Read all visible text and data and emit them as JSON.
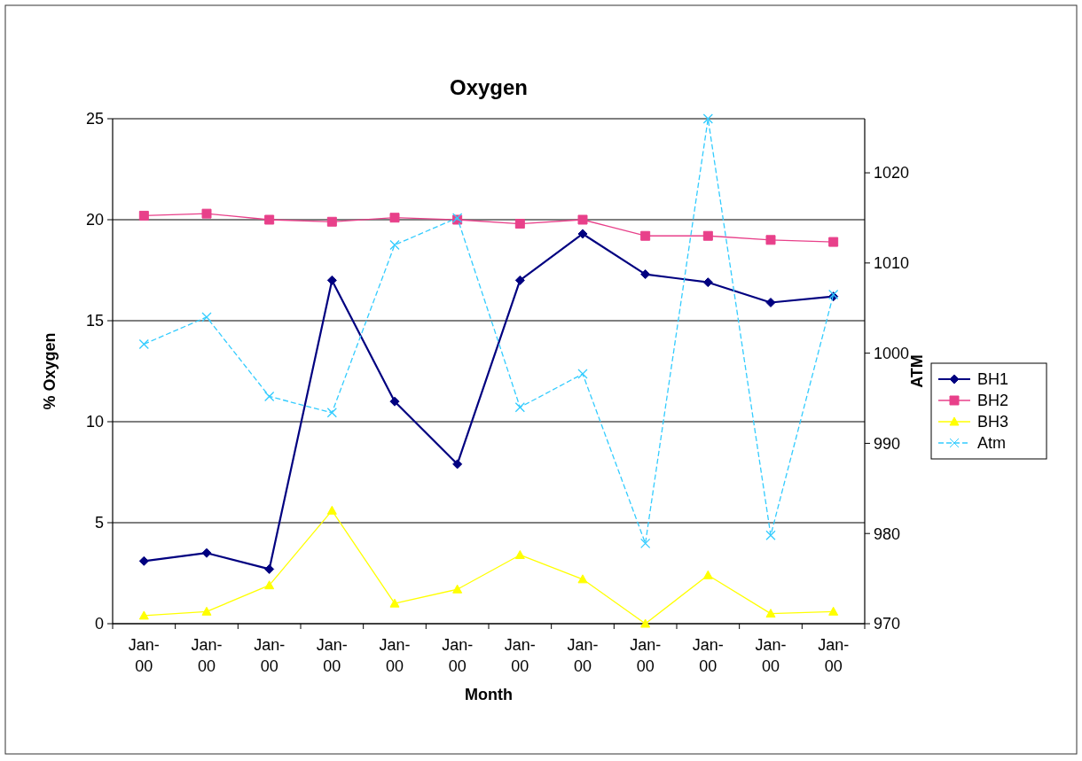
{
  "chart_data": {
    "type": "line",
    "title": "Oxygen",
    "xlabel": "Month",
    "ylabel": "% Oxygen",
    "y2label": "ATM",
    "categories": [
      "Jan-00",
      "Jan-00",
      "Jan-00",
      "Jan-00",
      "Jan-00",
      "Jan-00",
      "Jan-00",
      "Jan-00",
      "Jan-00",
      "Jan-00",
      "Jan-00",
      "Jan-00"
    ],
    "series": [
      {
        "name": "BH1",
        "color": "#000080",
        "marker": "diamond",
        "values": [
          3.1,
          3.5,
          2.7,
          17,
          11,
          7.9,
          17,
          19.3,
          17.3,
          16.9,
          15.9,
          16.2
        ]
      },
      {
        "name": "BH2",
        "color": "#e8408a",
        "marker": "square",
        "values": [
          20.2,
          20.3,
          20,
          19.9,
          20.1,
          20,
          19.8,
          20,
          19.2,
          19.2,
          19,
          18.9
        ]
      },
      {
        "name": "BH3",
        "color": "#ffff00",
        "marker": "triangle",
        "values": [
          0.4,
          0.6,
          1.9,
          5.6,
          1,
          1.7,
          3.4,
          2.2,
          0,
          2.4,
          0.5,
          0.6
        ]
      },
      {
        "name": "Atm",
        "color": "#33ccff",
        "marker": "cross",
        "line_style": "dashed",
        "axis": "y2",
        "values": [
          1001,
          1004,
          995.2,
          993.4,
          1012,
          1015,
          994,
          997.7,
          978.9,
          1026,
          979.8,
          1006.5
        ]
      }
    ],
    "ylim": [
      0,
      25
    ],
    "yticks": [
      0,
      5,
      10,
      15,
      20,
      25
    ],
    "y2lim": [
      970,
      1026
    ],
    "y2ticks": [
      970,
      980,
      990,
      1000,
      1010,
      1020
    ],
    "grid": "y",
    "legend": "right"
  }
}
